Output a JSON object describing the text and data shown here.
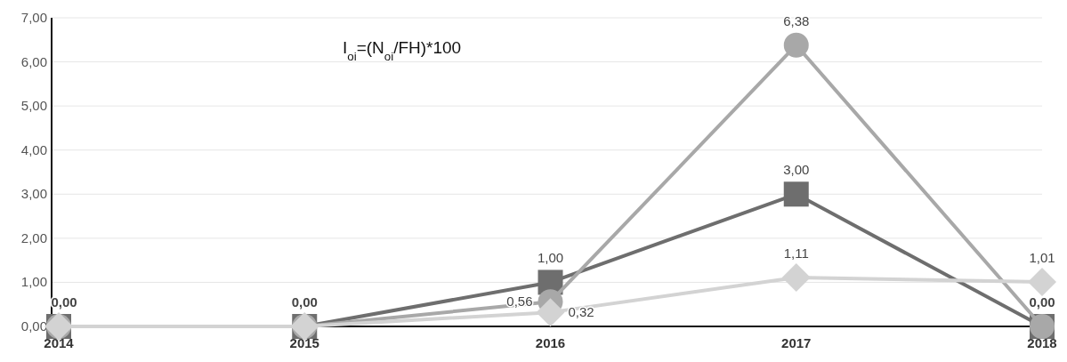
{
  "chart_data": {
    "type": "line",
    "categories": [
      "2014",
      "2015",
      "2016",
      "2017",
      "2018"
    ],
    "ylim": [
      0,
      7
    ],
    "yticks": [
      {
        "value": 0,
        "label": "0,00"
      },
      {
        "value": 1,
        "label": "1,00"
      },
      {
        "value": 2,
        "label": "2,00"
      },
      {
        "value": 3,
        "label": "3,00"
      },
      {
        "value": 4,
        "label": "4,00"
      },
      {
        "value": 5,
        "label": "5,00"
      },
      {
        "value": 6,
        "label": "6,00"
      },
      {
        "value": 7,
        "label": "7,00"
      }
    ],
    "grid": "y",
    "annotations": [
      "I$_{oi}$=(N$_{oi}$/FH)*100"
    ],
    "series": [
      {
        "color": "#6e6e6e",
        "marker": "square",
        "values": [
          0,
          0,
          1.0,
          3.0,
          0
        ],
        "value_labels": [
          "0,00",
          "0,00",
          "1,00",
          "3,00",
          "0,00"
        ]
      },
      {
        "color": "#a8a8a8",
        "marker": "circle",
        "values": [
          0,
          0,
          0.56,
          6.38,
          0
        ],
        "value_labels": [
          null,
          null,
          "0,56",
          "6,38",
          null
        ]
      },
      {
        "color": "#d3d3d3",
        "marker": "diamond",
        "values": [
          0,
          0,
          0.32,
          1.11,
          1.01
        ],
        "value_labels": [
          null,
          null,
          "0,32",
          "1,11",
          "1,01"
        ]
      }
    ]
  }
}
